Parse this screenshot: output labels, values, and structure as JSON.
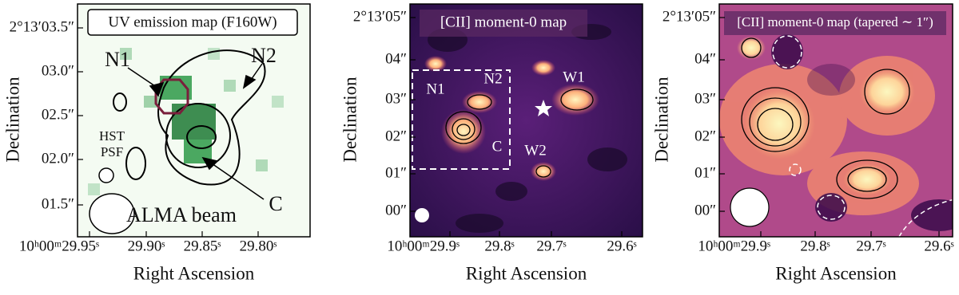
{
  "panels": [
    {
      "title": "UV emission map (F160W)",
      "ylabel": "Declination",
      "xlabel": "Right Ascension",
      "yticks": [
        "2°13′03.5″",
        "03.0″",
        "02.5″",
        "02.0″",
        "01.5″"
      ],
      "xticks": [
        "10ʰ00ᵐ29.95ˢ",
        "29.90ˢ",
        "29.85ˢ",
        "29.80ˢ"
      ],
      "annotations": [
        "N1",
        "N2",
        "C",
        "HST",
        "PSF",
        "ALMA beam"
      ]
    },
    {
      "title": "[CII] moment-0 map",
      "ylabel": "Declination",
      "xlabel": "Right Ascension",
      "yticks": [
        "2°13′05″",
        "04″",
        "03″",
        "02″",
        "01″",
        "00″"
      ],
      "xticks": [
        "10ʰ00ᵐ29.9ˢ",
        "29.8ˢ",
        "29.7ˢ",
        "29.6ˢ"
      ],
      "annotations": [
        "N1",
        "N2",
        "C",
        "W1",
        "W2"
      ]
    },
    {
      "title": "[CII] moment-0 map (tapered ∼ 1″)",
      "ylabel": "Declination",
      "xlabel": "Right Ascension",
      "yticks": [
        "2°13′05″",
        "04″",
        "03″",
        "02″",
        "01″",
        "00″"
      ],
      "xticks": [
        "10ʰ00ᵐ29.9ˢ",
        "29.8ˢ",
        "29.7ˢ",
        "29.6ˢ"
      ],
      "annotations": []
    }
  ]
}
